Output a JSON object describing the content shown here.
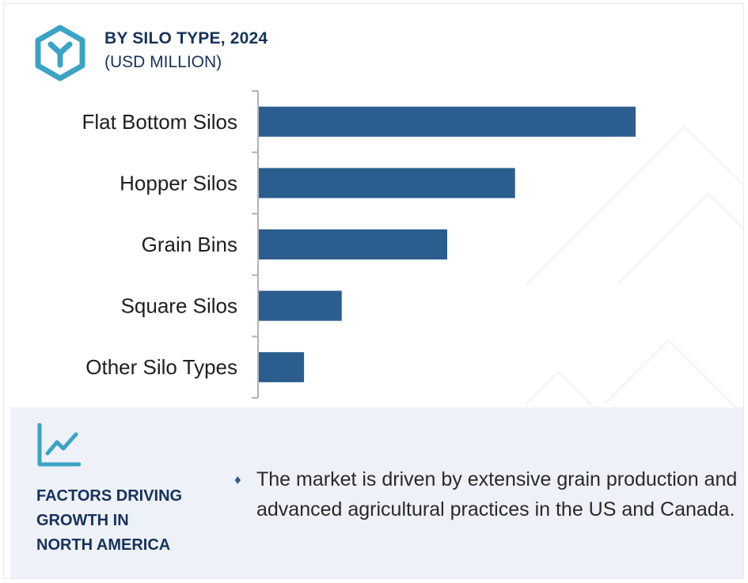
{
  "header": {
    "title": "BY SILO TYPE, 2024",
    "subtitle": "(USD MILLION)"
  },
  "chart_data": {
    "type": "bar",
    "orientation": "horizontal",
    "categories": [
      "Flat Bottom Silos",
      "Hopper Silos",
      "Grain Bins",
      "Square Silos",
      "Other Silo Types"
    ],
    "values": [
      100,
      68,
      50,
      22,
      12
    ],
    "bar_color": "#2c5d8f",
    "axis_color": "#b3b3b3",
    "grid": false,
    "legend": "none"
  },
  "factors": {
    "heading_lines": [
      "FACTORS DRIVING",
      "GROWTH IN",
      "NORTH AMERICA"
    ],
    "bullet": "♦",
    "description": "The market is driven by extensive grain production and advanced agricultural practices in the US and Canada."
  },
  "colors": {
    "navy": "#16325c",
    "accent": "#3aa3c6",
    "panel_bg": "#eef1f7"
  },
  "icons": {
    "logo": "hexagon-y-icon",
    "trend": "line-chart-icon"
  }
}
